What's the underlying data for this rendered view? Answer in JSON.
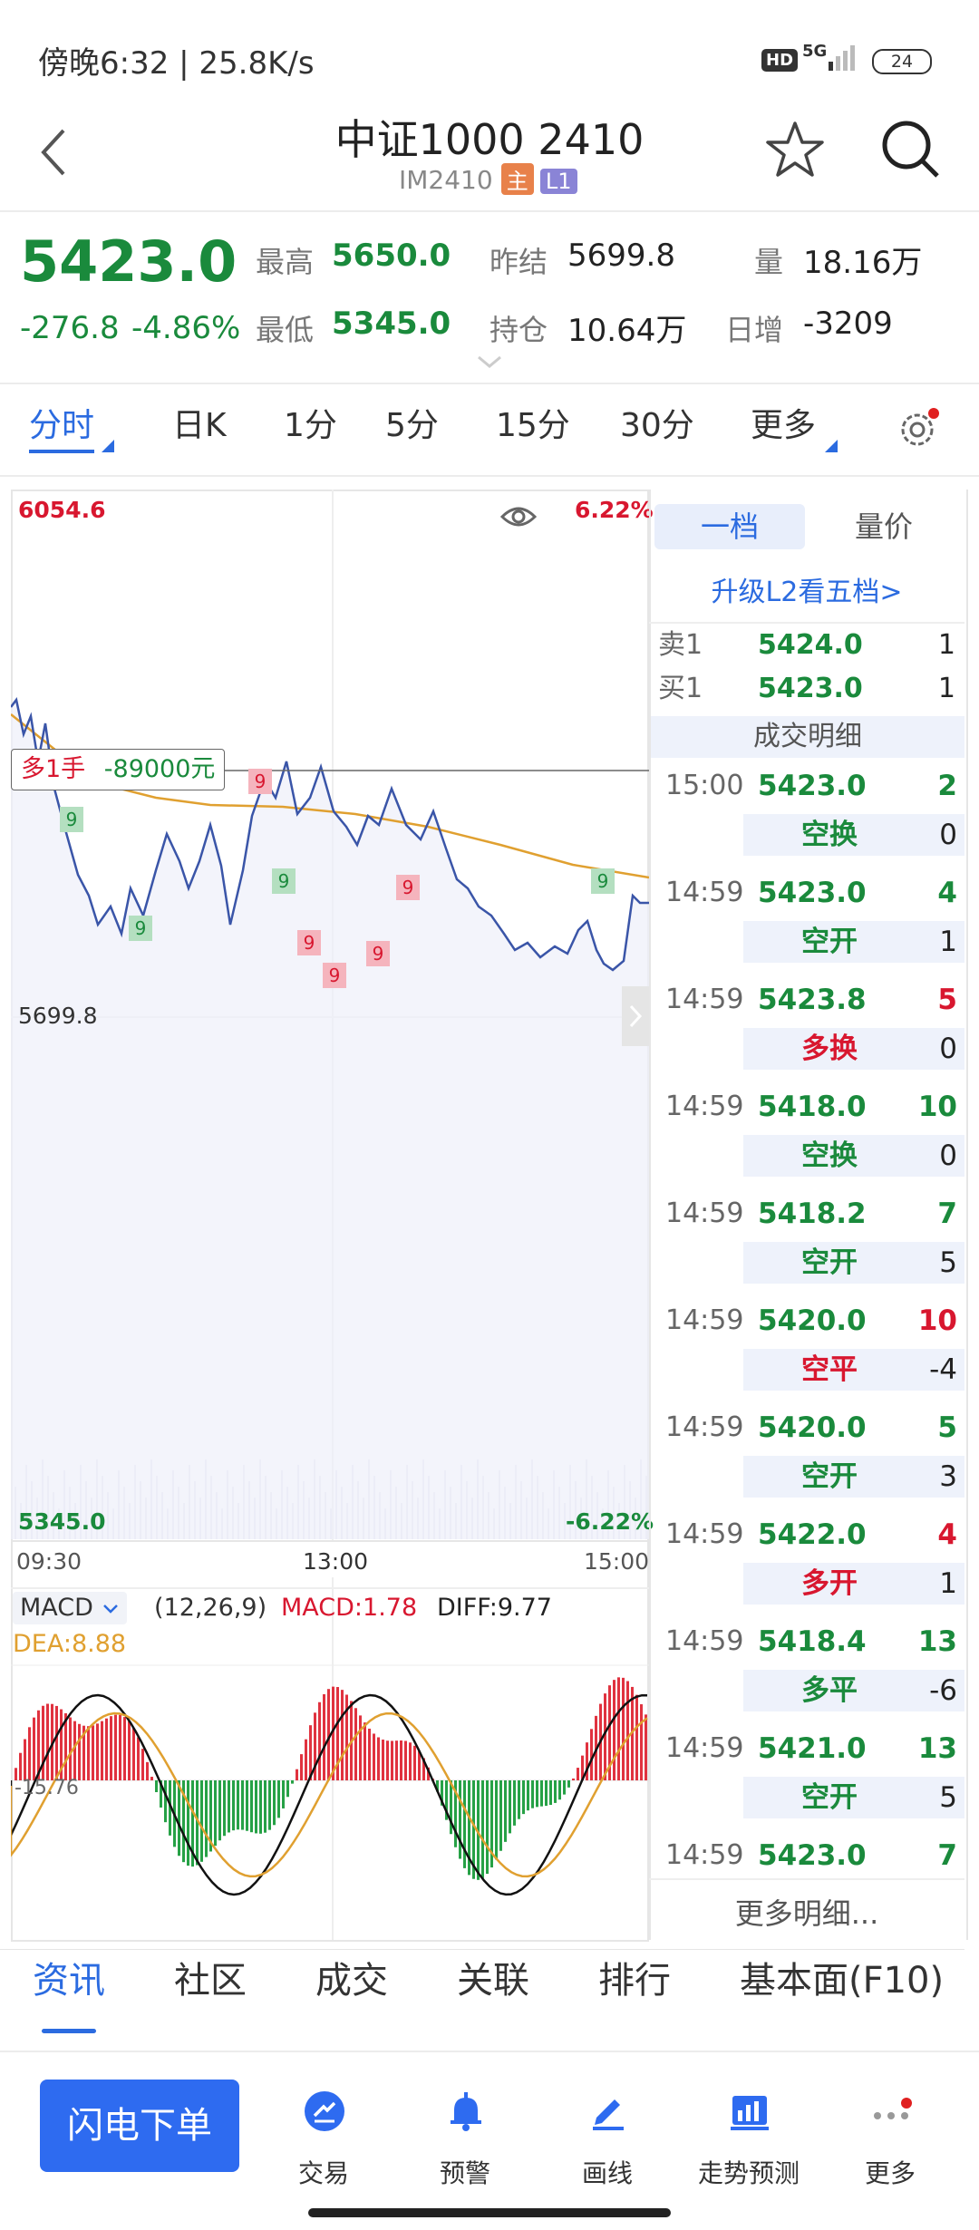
{
  "status_bar": {
    "time_speed": "傍晚6:32 | 25.8K/s",
    "hd": "HD",
    "network": "5G",
    "battery": "24"
  },
  "header": {
    "title": "中证1000 2410",
    "code": "IM2410",
    "badge_main": "主",
    "badge_level": "L1"
  },
  "quote": {
    "price": "5423.0",
    "change": "-276.8",
    "change_pct": "-4.86%",
    "high_label": "最高",
    "high": "5650.0",
    "low_label": "最低",
    "low": "5345.0",
    "prev_settle_label": "昨结",
    "prev_settle": "5699.8",
    "open_interest_label": "持仓",
    "open_interest": "10.64万",
    "volume_label": "量",
    "volume": "18.16万",
    "daily_inc_label": "日增",
    "daily_inc": "-3209"
  },
  "period_tabs": [
    "分时",
    "日K",
    "1分",
    "5分",
    "15分",
    "30分",
    "更多"
  ],
  "intraday_chart": {
    "top_price": "6054.6",
    "top_pct": "6.22%",
    "mid_price": "5699.8",
    "bottom_price": "5345.0",
    "bottom_pct": "-6.22%",
    "x_labels": [
      "09:30",
      "13:00",
      "15:00"
    ],
    "position_tag": {
      "side": "多1手",
      "pnl": "-89000元"
    },
    "markers": [
      {
        "label": "9",
        "type": "buy"
      },
      {
        "label": "9",
        "type": "buy"
      },
      {
        "label": "9",
        "type": "sell"
      },
      {
        "label": "9",
        "type": "sell"
      },
      {
        "label": "9",
        "type": "buy"
      },
      {
        "label": "9",
        "type": "sell"
      },
      {
        "label": "9",
        "type": "sell"
      },
      {
        "label": "9",
        "type": "sell"
      },
      {
        "label": "9",
        "type": "sell"
      },
      {
        "label": "9",
        "type": "buy"
      }
    ]
  },
  "macd_panel": {
    "indicator": "MACD",
    "params": "(12,26,9)",
    "macd": "MACD:1.78",
    "diff": "DIFF:9.77",
    "dea": "DEA:8.88",
    "axis_label": "-15.76"
  },
  "order_book": {
    "tab_level1": "一档",
    "tab_volume_price": "量价",
    "upgrade": "升级L2看五档>",
    "ask_label": "卖1",
    "ask_price": "5424.0",
    "ask_qty": "1",
    "bid_label": "买1",
    "bid_price": "5423.0",
    "bid_qty": "1",
    "trades_header": "成交明细",
    "trades": [
      {
        "time": "15:00",
        "price": "5423.0",
        "vol": "2",
        "kind": "空换",
        "chg": "0",
        "side": "sell"
      },
      {
        "time": "14:59",
        "price": "5423.0",
        "vol": "4",
        "kind": "空开",
        "chg": "1",
        "side": "sell"
      },
      {
        "time": "14:59",
        "price": "5423.8",
        "vol": "5",
        "kind": "多换",
        "chg": "0",
        "side": "buy"
      },
      {
        "time": "14:59",
        "price": "5418.0",
        "vol": "10",
        "kind": "空换",
        "chg": "0",
        "side": "sell"
      },
      {
        "time": "14:59",
        "price": "5418.2",
        "vol": "7",
        "kind": "空开",
        "chg": "5",
        "side": "sell"
      },
      {
        "time": "14:59",
        "price": "5420.0",
        "vol": "10",
        "kind": "空平",
        "chg": "-4",
        "side": "buy"
      },
      {
        "time": "14:59",
        "price": "5420.0",
        "vol": "5",
        "kind": "空开",
        "chg": "3",
        "side": "sell"
      },
      {
        "time": "14:59",
        "price": "5422.0",
        "vol": "4",
        "kind": "多开",
        "chg": "1",
        "side": "buy"
      },
      {
        "time": "14:59",
        "price": "5418.4",
        "vol": "13",
        "kind": "多平",
        "chg": "-6",
        "side": "sell"
      },
      {
        "time": "14:59",
        "price": "5421.0",
        "vol": "13",
        "kind": "空开",
        "chg": "5",
        "side": "sell"
      },
      {
        "time": "14:59",
        "price": "5423.0",
        "vol": "7",
        "kind": "",
        "chg": "",
        "side": "sell"
      }
    ],
    "more": "更多明细..."
  },
  "bottom_tabs": [
    "资讯",
    "社区",
    "成交",
    "关联",
    "排行",
    "基本面(F10)"
  ],
  "bottom_nav": {
    "flash_order": "闪电下单",
    "items": [
      "交易",
      "预警",
      "画线",
      "走势预测",
      "更多"
    ]
  },
  "colors": {
    "up": "#d8172f",
    "down": "#1a8a3c",
    "accent": "#2b6be0",
    "price_line": "#3a55a8",
    "avg_line": "#e0a030"
  }
}
